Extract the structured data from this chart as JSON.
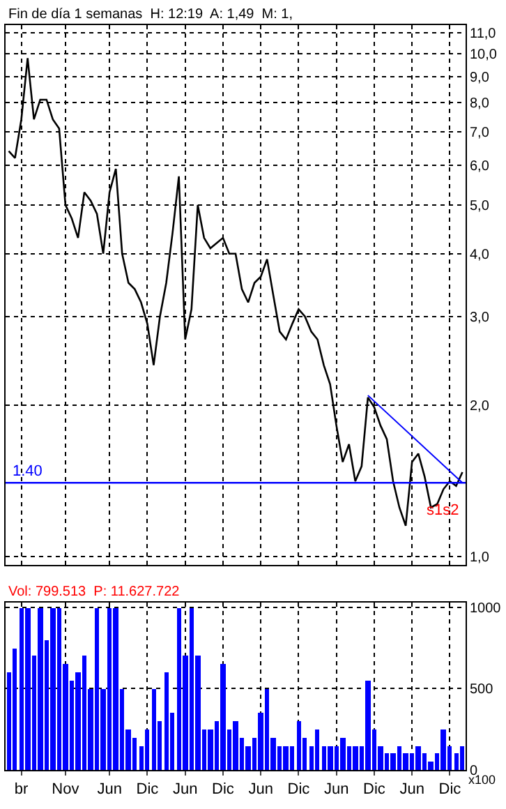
{
  "chart_data": [
    {
      "type": "line",
      "title": "Fin de día 1 semanas  H: 12:19  A: 1,49  M: 1,",
      "categories": [
        null,
        null,
        null,
        null,
        null,
        null,
        null,
        null,
        null,
        null,
        null,
        null,
        null,
        null,
        null,
        null,
        null,
        null,
        null,
        null,
        null,
        null,
        null,
        null,
        null,
        null,
        null,
        null,
        null,
        null,
        null,
        null,
        null,
        null,
        null,
        null,
        null,
        null,
        null,
        null,
        null,
        null,
        null,
        null,
        null,
        null,
        null,
        null,
        null,
        null,
        null,
        null,
        null,
        null,
        null,
        null,
        null,
        null,
        null,
        null,
        null,
        null,
        null,
        null,
        null,
        null,
        null,
        null,
        null,
        null,
        null,
        null,
        null
      ],
      "series": [
        {
          "color": "#000000",
          "values": [
            6.4,
            6.2,
            7.4,
            9.8,
            7.4,
            8.1,
            8.1,
            7.4,
            7.1,
            5.0,
            4.7,
            4.3,
            5.3,
            5.1,
            4.8,
            4.0,
            5.3,
            5.9,
            4.0,
            3.5,
            3.4,
            3.2,
            2.9,
            2.4,
            3.0,
            3.5,
            4.4,
            5.7,
            2.7,
            3.1,
            5.0,
            4.3,
            4.1,
            4.2,
            4.3,
            4.0,
            4.0,
            3.4,
            3.2,
            3.5,
            3.6,
            3.9,
            3.3,
            2.8,
            2.7,
            2.9,
            3.1,
            3.0,
            2.8,
            2.7,
            2.4,
            2.2,
            1.82,
            1.54,
            1.67,
            1.41,
            1.51,
            2.07,
            1.98,
            1.82,
            1.71,
            1.41,
            1.25,
            1.15,
            1.54,
            1.6,
            1.44,
            1.25,
            1.27,
            1.36,
            1.41,
            1.38,
            1.47
          ]
        },
        {
          "type": "line",
          "color": "#0000ff",
          "values": [
            null,
            null,
            null,
            null,
            null,
            null,
            null,
            null,
            null,
            null,
            null,
            null,
            null,
            null,
            null,
            null,
            null,
            null,
            null,
            null,
            null,
            null,
            null,
            null,
            null,
            null,
            null,
            null,
            null,
            null,
            null,
            null,
            null,
            null,
            null,
            null,
            null,
            null,
            null,
            null,
            null,
            null,
            null,
            null,
            null,
            null,
            null,
            null,
            null,
            null,
            null,
            null,
            null,
            null,
            null,
            null,
            null,
            2.09,
            null,
            null,
            null,
            null,
            null,
            null,
            null,
            null,
            null,
            null,
            null,
            null,
            null,
            null,
            1.4
          ]
        }
      ],
      "ref_lines": [
        {
          "axis": "y",
          "value": 1.4,
          "label": "1.40",
          "color": "#0000ff"
        }
      ],
      "annotations": [
        "s1s2"
      ],
      "log": true,
      "ylim": [
        0.96,
        11.4
      ],
      "yticks": [
        {
          "value": 1,
          "label": "1,0"
        },
        {
          "value": 2,
          "label": "2,0"
        },
        {
          "value": 3,
          "label": "3,0"
        },
        {
          "value": 4,
          "label": "4,0"
        },
        {
          "value": 5,
          "label": "5,0"
        },
        {
          "value": 6,
          "label": "6,0"
        },
        {
          "value": 7,
          "label": "7,0"
        },
        {
          "value": 8,
          "label": "8,0"
        },
        {
          "value": 9,
          "label": "9,0"
        },
        {
          "value": 10,
          "label": "10,0"
        },
        {
          "value": 11,
          "label": "11,0"
        }
      ],
      "grid": true,
      "tick_labels": "y"
    },
    {
      "type": "bar",
      "title": "Vol: 799.513  P: 11.627.722",
      "annotations": [
        "x100"
      ],
      "categories": [
        null,
        null,
        "br",
        null,
        null,
        null,
        null,
        null,
        null,
        "Nov",
        null,
        null,
        null,
        null,
        null,
        null,
        "Jun",
        null,
        null,
        null,
        null,
        null,
        "Dic",
        null,
        null,
        null,
        null,
        null,
        "Jun",
        null,
        null,
        null,
        null,
        null,
        "Dic",
        null,
        null,
        null,
        null,
        null,
        "Jun",
        null,
        null,
        null,
        null,
        null,
        "Dic",
        null,
        null,
        null,
        null,
        null,
        "Jun",
        null,
        null,
        null,
        null,
        null,
        "Dic",
        null,
        null,
        null,
        null,
        null,
        "Jun",
        null,
        null,
        null,
        null,
        null,
        "Dic",
        null,
        null
      ],
      "series": [
        {
          "color": "#0000ff",
          "values": [
            600,
            750,
            1000,
            1000,
            700,
            1000,
            800,
            1000,
            1000,
            650,
            550,
            600,
            700,
            500,
            1000,
            500,
            1000,
            1000,
            500,
            250,
            200,
            150,
            250,
            500,
            300,
            600,
            350,
            1000,
            700,
            1000,
            700,
            250,
            250,
            300,
            650,
            250,
            300,
            200,
            150,
            200,
            350,
            500,
            200,
            150,
            150,
            150,
            300,
            200,
            150,
            250,
            150,
            150,
            150,
            200,
            150,
            150,
            150,
            550,
            250,
            150,
            100,
            100,
            150,
            100,
            100,
            150,
            100,
            50,
            100,
            250,
            150,
            100,
            150
          ]
        }
      ],
      "ylim": [
        0,
        1030
      ],
      "yticks": [
        0,
        500,
        1000
      ],
      "grid": true
    }
  ]
}
